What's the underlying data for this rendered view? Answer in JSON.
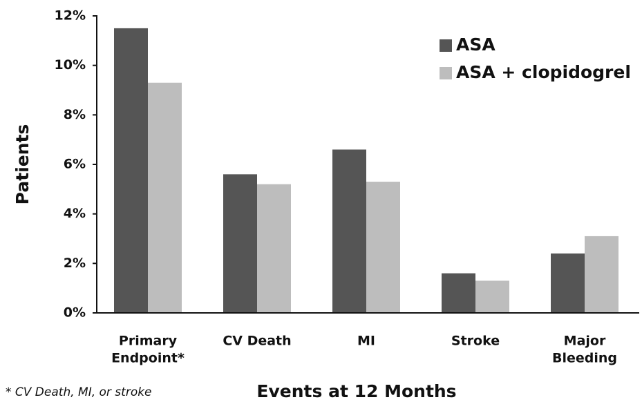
{
  "chart_data": {
    "type": "bar",
    "categories": [
      [
        "Primary",
        "Endpoint*"
      ],
      [
        "CV Death"
      ],
      [
        "MI"
      ],
      [
        "Stroke"
      ],
      [
        "Major",
        "Bleeding"
      ]
    ],
    "series": [
      {
        "name": "ASA",
        "color": "#555555",
        "values": [
          11.5,
          5.6,
          6.6,
          1.6,
          2.4
        ]
      },
      {
        "name": "ASA + clopidogrel",
        "color": "#bdbdbd",
        "values": [
          9.3,
          5.2,
          5.3,
          1.3,
          3.1
        ]
      }
    ],
    "ylim": [
      0,
      12
    ],
    "yticks": [
      {
        "value": 0,
        "label": "0%"
      },
      {
        "value": 2,
        "label": "2%"
      },
      {
        "value": 4,
        "label": "4%"
      },
      {
        "value": 6,
        "label": "6%"
      },
      {
        "value": 8,
        "label": "8%"
      },
      {
        "value": 10,
        "label": "10%"
      },
      {
        "value": 12,
        "label": "12%"
      }
    ],
    "y_label": "Patients",
    "x_label": "Events at 12 Months",
    "footnote": "* CV Death, MI, or stroke",
    "legend": "top-right"
  }
}
